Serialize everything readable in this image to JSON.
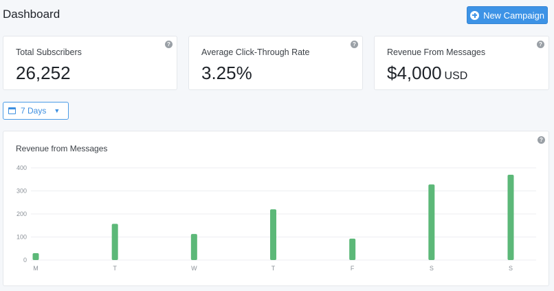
{
  "header": {
    "title": "Dashboard",
    "new_campaign_label": "New Campaign"
  },
  "stats": [
    {
      "label": "Total Subscribers",
      "value": "26,252",
      "unit": ""
    },
    {
      "label": "Average Click-Through Rate",
      "value": "3.25%",
      "unit": ""
    },
    {
      "label": "Revenue From Messages",
      "value": "$4,000",
      "unit": "USD"
    }
  ],
  "help_glyph": "?",
  "range_select": {
    "label": "7 Days",
    "icon": "calendar-icon"
  },
  "colors": {
    "accent": "#3d93e6",
    "bar": "#5cb878"
  },
  "chart_data": {
    "type": "bar",
    "title": "Revenue from Messages",
    "categories": [
      "M",
      "T",
      "W",
      "T",
      "F",
      "S",
      "S"
    ],
    "values": [
      30,
      157,
      113,
      220,
      93,
      328,
      370
    ],
    "ylim": [
      0,
      400
    ],
    "yticks": [
      0,
      100,
      200,
      300,
      400
    ],
    "grid": true,
    "xlabel": "",
    "ylabel": ""
  }
}
